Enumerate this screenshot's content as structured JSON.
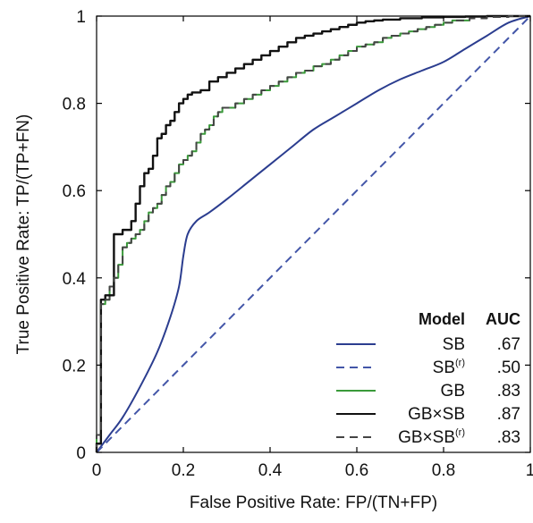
{
  "chart_data": {
    "type": "line",
    "xlabel": "False Positive Rate: FP/(TN+FP)",
    "ylabel": "True Positive Rate: TP/(TP+FN)",
    "xlim": [
      0,
      1
    ],
    "ylim": [
      0,
      1
    ],
    "x_ticks": [
      "0",
      "0.2",
      "0.4",
      "0.6",
      "0.8",
      "1"
    ],
    "y_ticks": [
      "0",
      "0.2",
      "0.4",
      "0.6",
      "0.8",
      "1"
    ],
    "grid": false,
    "legend": {
      "placement": "bottom-right",
      "header_model": "Model",
      "header_auc": "AUC"
    },
    "series": [
      {
        "name": "SB",
        "superscript": "",
        "auc": ".67",
        "color": "#2b3d8f",
        "dash": "solid",
        "step": false,
        "points": [
          [
            0,
            0
          ],
          [
            0.03,
            0.04
          ],
          [
            0.06,
            0.08
          ],
          [
            0.1,
            0.15
          ],
          [
            0.14,
            0.23
          ],
          [
            0.17,
            0.31
          ],
          [
            0.19,
            0.38
          ],
          [
            0.2,
            0.45
          ],
          [
            0.21,
            0.5
          ],
          [
            0.23,
            0.53
          ],
          [
            0.26,
            0.55
          ],
          [
            0.3,
            0.58
          ],
          [
            0.35,
            0.62
          ],
          [
            0.4,
            0.66
          ],
          [
            0.45,
            0.7
          ],
          [
            0.5,
            0.74
          ],
          [
            0.55,
            0.77
          ],
          [
            0.6,
            0.8
          ],
          [
            0.65,
            0.83
          ],
          [
            0.7,
            0.855
          ],
          [
            0.75,
            0.875
          ],
          [
            0.8,
            0.895
          ],
          [
            0.85,
            0.925
          ],
          [
            0.9,
            0.955
          ],
          [
            0.95,
            0.985
          ],
          [
            1,
            1
          ]
        ]
      },
      {
        "name": "SB",
        "superscript": "(r)",
        "auc": ".50",
        "color": "#4356a8",
        "dash": "dashed",
        "step": false,
        "points": [
          [
            0,
            0
          ],
          [
            1,
            1
          ]
        ]
      },
      {
        "name": "GB",
        "superscript": "",
        "auc": ".83",
        "color": "#3a9a3a",
        "dash": "solid",
        "step": true,
        "points": [
          [
            0,
            0
          ],
          [
            0,
            0.04
          ],
          [
            0.01,
            0.04
          ],
          [
            0.01,
            0.34
          ],
          [
            0.02,
            0.35
          ],
          [
            0.03,
            0.38
          ],
          [
            0.04,
            0.4
          ],
          [
            0.05,
            0.43
          ],
          [
            0.06,
            0.47
          ],
          [
            0.07,
            0.48
          ],
          [
            0.08,
            0.49
          ],
          [
            0.09,
            0.5
          ],
          [
            0.1,
            0.51
          ],
          [
            0.11,
            0.53
          ],
          [
            0.12,
            0.55
          ],
          [
            0.13,
            0.56
          ],
          [
            0.14,
            0.57
          ],
          [
            0.15,
            0.59
          ],
          [
            0.16,
            0.61
          ],
          [
            0.17,
            0.62
          ],
          [
            0.18,
            0.64
          ],
          [
            0.19,
            0.66
          ],
          [
            0.2,
            0.67
          ],
          [
            0.21,
            0.68
          ],
          [
            0.22,
            0.69
          ],
          [
            0.23,
            0.71
          ],
          [
            0.24,
            0.73
          ],
          [
            0.25,
            0.74
          ],
          [
            0.26,
            0.75
          ],
          [
            0.27,
            0.77
          ],
          [
            0.28,
            0.78
          ],
          [
            0.29,
            0.79
          ],
          [
            0.3,
            0.79
          ],
          [
            0.32,
            0.8
          ],
          [
            0.34,
            0.81
          ],
          [
            0.36,
            0.82
          ],
          [
            0.38,
            0.83
          ],
          [
            0.4,
            0.84
          ],
          [
            0.42,
            0.85
          ],
          [
            0.44,
            0.86
          ],
          [
            0.46,
            0.87
          ],
          [
            0.48,
            0.875
          ],
          [
            0.5,
            0.885
          ],
          [
            0.52,
            0.89
          ],
          [
            0.54,
            0.9
          ],
          [
            0.56,
            0.91
          ],
          [
            0.58,
            0.92
          ],
          [
            0.6,
            0.93
          ],
          [
            0.62,
            0.935
          ],
          [
            0.64,
            0.94
          ],
          [
            0.66,
            0.95
          ],
          [
            0.68,
            0.955
          ],
          [
            0.7,
            0.96
          ],
          [
            0.72,
            0.965
          ],
          [
            0.74,
            0.97
          ],
          [
            0.76,
            0.975
          ],
          [
            0.78,
            0.98
          ],
          [
            0.8,
            0.985
          ],
          [
            0.82,
            0.99
          ],
          [
            0.84,
            0.99
          ],
          [
            0.86,
            0.99
          ]
        ]
      },
      {
        "name": "GB×SB",
        "superscript": "",
        "auc": ".87",
        "color": "#111111",
        "dash": "solid",
        "step": true,
        "points": [
          [
            0,
            0
          ],
          [
            0,
            0.02
          ],
          [
            0.01,
            0.05
          ],
          [
            0.01,
            0.35
          ],
          [
            0.02,
            0.36
          ],
          [
            0.03,
            0.36
          ],
          [
            0.04,
            0.42
          ],
          [
            0.04,
            0.5
          ],
          [
            0.06,
            0.51
          ],
          [
            0.08,
            0.53
          ],
          [
            0.09,
            0.57
          ],
          [
            0.1,
            0.61
          ],
          [
            0.11,
            0.64
          ],
          [
            0.12,
            0.65
          ],
          [
            0.13,
            0.68
          ],
          [
            0.14,
            0.72
          ],
          [
            0.15,
            0.73
          ],
          [
            0.16,
            0.75
          ],
          [
            0.17,
            0.76
          ],
          [
            0.18,
            0.78
          ],
          [
            0.19,
            0.8
          ],
          [
            0.2,
            0.81
          ],
          [
            0.21,
            0.82
          ],
          [
            0.22,
            0.825
          ],
          [
            0.24,
            0.83
          ],
          [
            0.26,
            0.85
          ],
          [
            0.28,
            0.86
          ],
          [
            0.3,
            0.87
          ],
          [
            0.32,
            0.88
          ],
          [
            0.34,
            0.89
          ],
          [
            0.36,
            0.9
          ],
          [
            0.38,
            0.91
          ],
          [
            0.4,
            0.92
          ],
          [
            0.42,
            0.93
          ],
          [
            0.44,
            0.94
          ],
          [
            0.46,
            0.95
          ],
          [
            0.48,
            0.955
          ],
          [
            0.5,
            0.96
          ],
          [
            0.52,
            0.965
          ],
          [
            0.54,
            0.97
          ],
          [
            0.56,
            0.975
          ],
          [
            0.58,
            0.98
          ],
          [
            0.6,
            0.985
          ],
          [
            0.62,
            0.988
          ],
          [
            0.64,
            0.99
          ],
          [
            0.66,
            0.992
          ],
          [
            0.7,
            0.995
          ],
          [
            0.75,
            0.997
          ],
          [
            0.8,
            0.998
          ],
          [
            0.85,
            0.999
          ],
          [
            0.9,
            1
          ],
          [
            1,
            1
          ]
        ]
      },
      {
        "name": "GB×SB",
        "superscript": "(r)",
        "auc": ".83",
        "color": "#444444",
        "dash": "dashed",
        "step": true,
        "points": [
          [
            0,
            0
          ],
          [
            0,
            0.04
          ],
          [
            0.01,
            0.04
          ],
          [
            0.01,
            0.34
          ],
          [
            0.02,
            0.35
          ],
          [
            0.03,
            0.38
          ],
          [
            0.04,
            0.4
          ],
          [
            0.05,
            0.43
          ],
          [
            0.06,
            0.47
          ],
          [
            0.07,
            0.48
          ],
          [
            0.08,
            0.49
          ],
          [
            0.09,
            0.5
          ],
          [
            0.1,
            0.51
          ],
          [
            0.11,
            0.53
          ],
          [
            0.12,
            0.55
          ],
          [
            0.13,
            0.56
          ],
          [
            0.14,
            0.57
          ],
          [
            0.15,
            0.59
          ],
          [
            0.16,
            0.61
          ],
          [
            0.17,
            0.62
          ],
          [
            0.18,
            0.64
          ],
          [
            0.19,
            0.66
          ],
          [
            0.2,
            0.67
          ],
          [
            0.21,
            0.68
          ],
          [
            0.22,
            0.69
          ],
          [
            0.23,
            0.71
          ],
          [
            0.24,
            0.73
          ],
          [
            0.25,
            0.74
          ],
          [
            0.26,
            0.75
          ],
          [
            0.27,
            0.77
          ],
          [
            0.28,
            0.78
          ],
          [
            0.29,
            0.79
          ],
          [
            0.3,
            0.79
          ],
          [
            0.32,
            0.8
          ],
          [
            0.34,
            0.81
          ],
          [
            0.36,
            0.82
          ],
          [
            0.38,
            0.83
          ],
          [
            0.4,
            0.84
          ],
          [
            0.42,
            0.85
          ],
          [
            0.44,
            0.86
          ],
          [
            0.46,
            0.87
          ],
          [
            0.48,
            0.875
          ],
          [
            0.5,
            0.885
          ],
          [
            0.52,
            0.89
          ],
          [
            0.54,
            0.9
          ],
          [
            0.56,
            0.91
          ],
          [
            0.58,
            0.92
          ],
          [
            0.6,
            0.93
          ],
          [
            0.62,
            0.935
          ],
          [
            0.64,
            0.94
          ],
          [
            0.66,
            0.95
          ],
          [
            0.68,
            0.955
          ],
          [
            0.7,
            0.96
          ],
          [
            0.72,
            0.965
          ],
          [
            0.74,
            0.97
          ],
          [
            0.76,
            0.975
          ],
          [
            0.78,
            0.98
          ],
          [
            0.8,
            0.985
          ],
          [
            0.82,
            0.99
          ],
          [
            0.86,
            0.995
          ],
          [
            0.9,
            0.998
          ],
          [
            0.95,
            1
          ],
          [
            1,
            1
          ]
        ]
      }
    ]
  }
}
